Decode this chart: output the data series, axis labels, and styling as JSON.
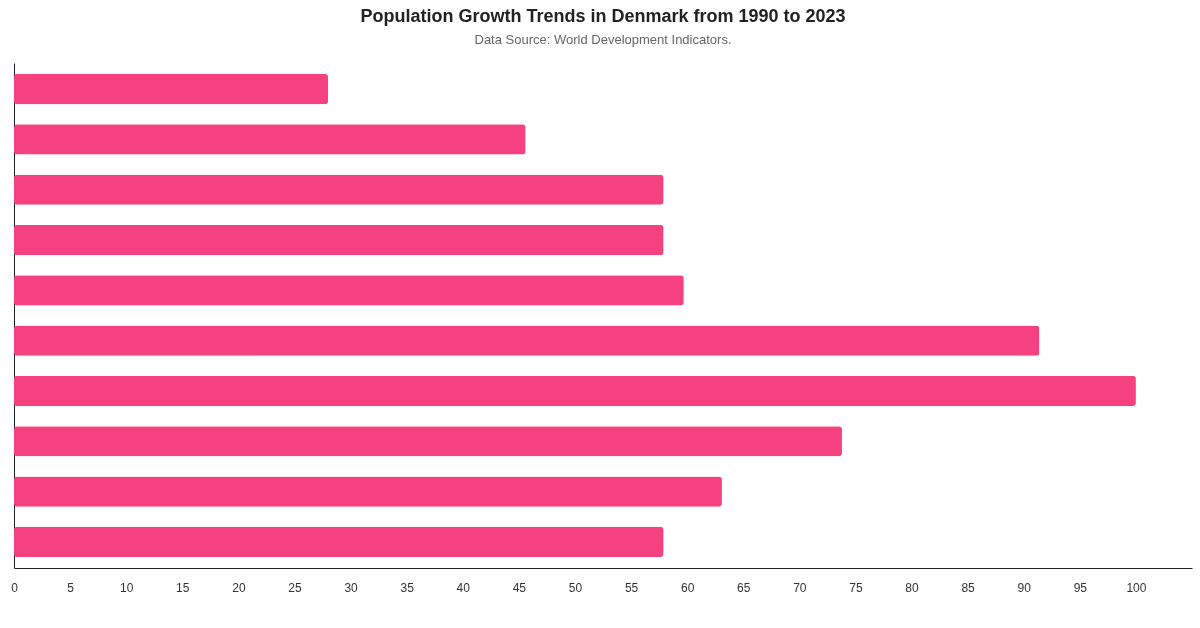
{
  "chart_data": {
    "type": "bar",
    "title": "Population Growth Trends in Denmark from 1990 to 2023",
    "subtitle": "Data Source: World Development Indicators.",
    "orientation": "horizontal",
    "categories": [
      null,
      null,
      null,
      null,
      null,
      null,
      null,
      null,
      null,
      null
    ],
    "values": [
      28,
      45.6,
      57.9,
      57.9,
      59.7,
      91.4,
      100,
      73.8,
      63.1,
      57.9
    ],
    "color": "#f5417f",
    "xlim": [
      0,
      105
    ],
    "xticks": [
      0,
      5,
      10,
      15,
      20,
      25,
      30,
      35,
      40,
      45,
      50,
      55,
      60,
      65,
      70,
      75,
      80,
      85,
      90,
      95,
      100
    ]
  }
}
